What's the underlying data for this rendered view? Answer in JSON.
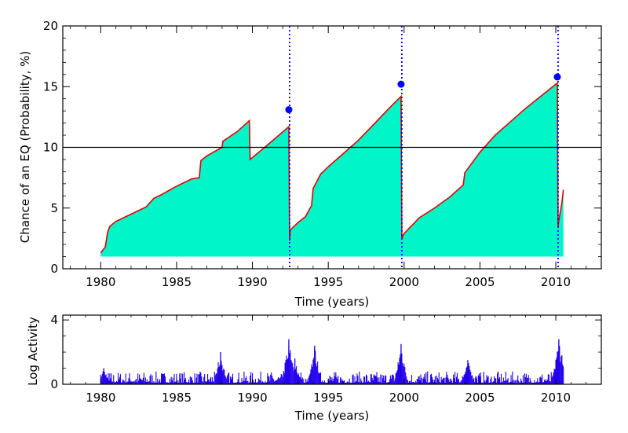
{
  "chart_data": [
    {
      "type": "area",
      "xlabel": "Time (years)",
      "ylabel": "Chance of an EQ (Probability, %)",
      "xlim": [
        1977.5,
        2013.0
      ],
      "ylim": [
        0,
        20
      ],
      "xticks": [
        "1980",
        "1985",
        "1990",
        "1995",
        "2000",
        "2005",
        "2010"
      ],
      "yticks": [
        "0",
        "5",
        "10",
        "15",
        "20"
      ],
      "grid": false,
      "fill_baseline": 1.0,
      "threshold": 10,
      "series": [
        {
          "x": [
            1980.0,
            1980.3,
            1980.4,
            1980.45,
            1980.6,
            1981.0,
            1982.0,
            1983.0,
            1983.5,
            1984.0,
            1985.0,
            1986.0,
            1986.5,
            1986.6,
            1987.0,
            1988.0,
            1988.05,
            1989.0,
            1989.8,
            1989.85,
            1991.0,
            1992.4,
            1992.45,
            1992.5,
            1993.0,
            1993.5,
            1993.9,
            1994.0,
            1994.5,
            1995.0,
            1996.0,
            1997.0,
            1998.0,
            1999.0,
            1999.8,
            1999.85,
            2000.0,
            2001.0,
            2002.0,
            2003.0,
            2003.9,
            2004.0,
            2005.0,
            2006.0,
            2007.0,
            2008.0,
            2009.0,
            2010.1,
            2010.15,
            2010.2,
            2010.4,
            2010.5
          ],
          "y": [
            1.3,
            1.8,
            2.6,
            3.0,
            3.5,
            3.9,
            4.5,
            5.1,
            5.8,
            6.1,
            6.8,
            7.4,
            7.5,
            8.9,
            9.3,
            10.0,
            10.5,
            11.3,
            12.2,
            9.0,
            10.2,
            11.7,
            2.3,
            3.2,
            3.8,
            4.3,
            5.2,
            6.6,
            7.8,
            8.4,
            9.5,
            10.6,
            11.9,
            13.2,
            14.2,
            2.5,
            2.9,
            4.2,
            5.0,
            5.9,
            6.9,
            7.9,
            9.6,
            11.0,
            12.1,
            13.2,
            14.2,
            15.3,
            3.4,
            4.0,
            5.4,
            6.5
          ]
        }
      ],
      "event_years": [
        1992.45,
        1999.85,
        2010.15
      ],
      "event_markers": [
        {
          "x": 1992.4,
          "y": 13.1
        },
        {
          "x": 1999.8,
          "y": 15.2
        },
        {
          "x": 2010.1,
          "y": 15.8
        }
      ],
      "colors": {
        "fill": "#00f6c8",
        "line": "#e60000",
        "threshold": "#000000",
        "event": "#0000ff",
        "marker": "#0000ff"
      }
    },
    {
      "type": "bar",
      "xlabel": "Time (years)",
      "ylabel": "Log Activity",
      "xlim": [
        1977.5,
        2013.0
      ],
      "ylim": [
        0,
        4.3
      ],
      "xticks": [
        "1980",
        "1985",
        "1990",
        "1995",
        "2000",
        "2005",
        "2010"
      ],
      "yticks": [
        "0",
        "4"
      ],
      "grid": false,
      "x_range": [
        1980.0,
        2010.5
      ],
      "typical_range": [
        0.1,
        0.8
      ],
      "peaks": [
        {
          "x": 1980.2,
          "y": 1.0
        },
        {
          "x": 1987.9,
          "y": 2.0
        },
        {
          "x": 1992.4,
          "y": 2.8
        },
        {
          "x": 1992.8,
          "y": 1.6
        },
        {
          "x": 1994.1,
          "y": 2.4
        },
        {
          "x": 1999.8,
          "y": 2.5
        },
        {
          "x": 2004.2,
          "y": 1.5
        },
        {
          "x": 2010.2,
          "y": 2.8
        },
        {
          "x": 2010.4,
          "y": 1.8
        }
      ],
      "colors": {
        "bar": "#2200ee"
      }
    }
  ]
}
